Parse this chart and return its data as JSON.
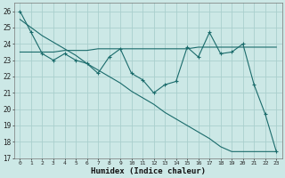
{
  "xlabel": "Humidex (Indice chaleur)",
  "bg_color": "#cce8e6",
  "grid_color": "#aacfcd",
  "line_color": "#1a6b6b",
  "x_values": [
    0,
    1,
    2,
    3,
    4,
    5,
    6,
    7,
    8,
    9,
    10,
    11,
    12,
    13,
    14,
    15,
    16,
    17,
    18,
    19,
    20,
    21,
    22,
    23
  ],
  "y_zigzag": [
    26.0,
    24.7,
    23.4,
    23.0,
    23.4,
    23.0,
    22.8,
    22.2,
    23.2,
    23.7,
    22.2,
    21.8,
    21.0,
    21.5,
    21.7,
    23.8,
    23.2,
    24.7,
    23.4,
    23.5,
    24.0,
    21.5,
    19.7,
    17.4
  ],
  "y_flat": [
    23.5,
    23.5,
    23.5,
    23.5,
    23.6,
    23.6,
    23.6,
    23.7,
    23.7,
    23.7,
    23.7,
    23.7,
    23.7,
    23.7,
    23.7,
    23.7,
    23.8,
    23.8,
    23.8,
    23.8,
    23.8,
    23.8,
    23.8,
    23.8
  ],
  "y_decline": [
    25.5,
    25.0,
    24.5,
    24.1,
    23.7,
    23.3,
    22.8,
    22.4,
    22.0,
    21.6,
    21.1,
    20.7,
    20.3,
    19.8,
    19.4,
    19.0,
    18.6,
    18.2,
    17.7,
    17.4,
    17.4,
    17.4,
    17.4,
    17.4
  ],
  "ylim": [
    17,
    26.5
  ],
  "xlim": [
    -0.5,
    23.5
  ],
  "yticks": [
    17,
    18,
    19,
    20,
    21,
    22,
    23,
    24,
    25,
    26
  ],
  "xticks": [
    0,
    1,
    2,
    3,
    4,
    5,
    6,
    7,
    8,
    9,
    10,
    11,
    12,
    13,
    14,
    15,
    16,
    17,
    18,
    19,
    20,
    21,
    22,
    23
  ]
}
